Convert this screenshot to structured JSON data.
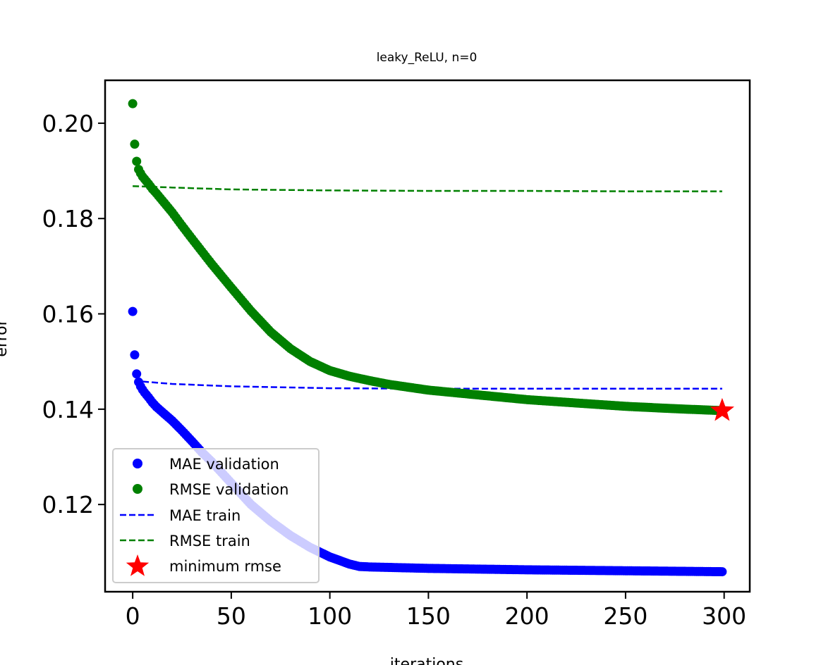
{
  "chart_data": {
    "type": "scatter",
    "title": "leaky_ReLU, n=0",
    "xlabel": "iterations",
    "ylabel": "error",
    "xlim": [
      -14,
      313
    ],
    "ylim": [
      0.1017,
      0.209
    ],
    "xticks": [
      0,
      50,
      100,
      150,
      200,
      250,
      300
    ],
    "yticks": [
      0.12,
      0.14,
      0.16,
      0.18,
      0.2
    ],
    "ytick_labels": [
      "0.12",
      "0.14",
      "0.16",
      "0.18",
      "0.20"
    ],
    "legend_position": "lower-left",
    "grid": false,
    "series": [
      {
        "name": "MAE validation",
        "kind": "points",
        "color": "#0000ff",
        "x": [
          0,
          1,
          2,
          3,
          4,
          5,
          6,
          8,
          10,
          12,
          15,
          20,
          25,
          30,
          35,
          40,
          50,
          60,
          70,
          80,
          90,
          100,
          110,
          115,
          120,
          130,
          150,
          200,
          250,
          299
        ],
        "y": [
          0.1605,
          0.1514,
          0.1474,
          0.1457,
          0.1448,
          0.1441,
          0.1435,
          0.1425,
          0.1414,
          0.1405,
          0.1394,
          0.1376,
          0.1355,
          0.1333,
          0.131,
          0.129,
          0.1245,
          0.12,
          0.1165,
          0.1135,
          0.111,
          0.109,
          0.1075,
          0.107,
          0.1069,
          0.1068,
          0.1066,
          0.1063,
          0.1061,
          0.1059
        ]
      },
      {
        "name": "RMSE validation",
        "kind": "points",
        "color": "#008000",
        "x": [
          0,
          1,
          2,
          3,
          4,
          5,
          6,
          8,
          10,
          12,
          15,
          20,
          25,
          30,
          40,
          50,
          60,
          70,
          80,
          90,
          100,
          110,
          120,
          130,
          150,
          175,
          200,
          225,
          250,
          275,
          299
        ],
        "y": [
          0.2041,
          0.1956,
          0.192,
          0.1903,
          0.1895,
          0.1888,
          0.1883,
          0.1873,
          0.1862,
          0.1853,
          0.1838,
          0.1813,
          0.1785,
          0.1758,
          0.1705,
          0.1655,
          0.1606,
          0.1562,
          0.1527,
          0.15,
          0.1481,
          0.1469,
          0.146,
          0.1452,
          0.144,
          0.143,
          0.142,
          0.1413,
          0.1406,
          0.1401,
          0.1397
        ]
      },
      {
        "name": "MAE train",
        "kind": "dashed-line",
        "color": "#0000ff",
        "x": [
          5,
          20,
          50,
          100,
          150,
          200,
          250,
          299
        ],
        "y": [
          0.1458,
          0.1453,
          0.1448,
          0.1444,
          0.1443,
          0.1443,
          0.1443,
          0.1443
        ]
      },
      {
        "name": "RMSE train",
        "kind": "dashed-line",
        "color": "#008000",
        "x": [
          0,
          20,
          50,
          100,
          150,
          200,
          250,
          299
        ],
        "y": [
          0.1868,
          0.1865,
          0.1861,
          0.1859,
          0.1858,
          0.1858,
          0.1857,
          0.1857
        ]
      },
      {
        "name": "minimum rmse",
        "kind": "star",
        "color": "#ff0000",
        "x": [
          299
        ],
        "y": [
          0.1397
        ]
      }
    ]
  }
}
